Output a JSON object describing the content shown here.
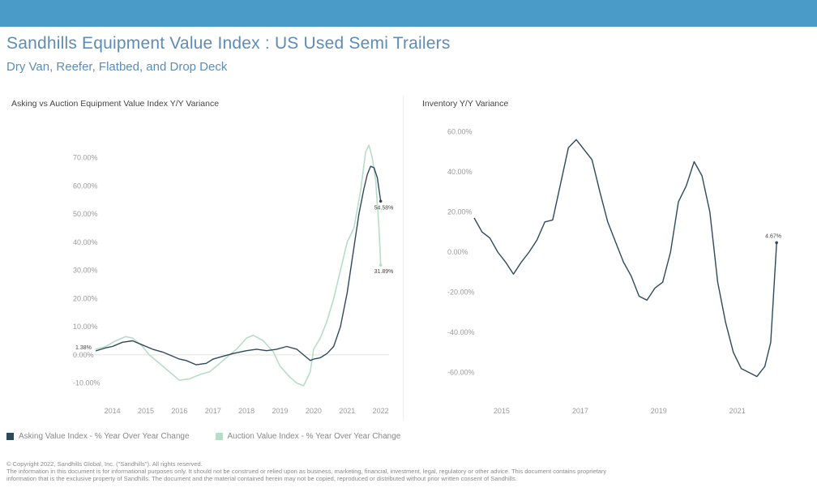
{
  "header": {
    "title": "Sandhills Equipment Value Index : US Used Semi Trailers",
    "subtitle": "Dry Van, Reefer, Flatbed, and Drop Deck"
  },
  "colors": {
    "topbar": "#4b9bc8",
    "title": "#5c8db8",
    "asking": "#2d4a5a",
    "auction": "#b8dcc8"
  },
  "legend": {
    "asking": "Asking Value Index - % Year Over Year Change",
    "auction": "Auction Value Index - % Year Over Year Change"
  },
  "footer": {
    "line1": "© Copyright 2022, Sandhills Global, Inc. (\"Sandhills\"). All rights reserved.",
    "line2": "The information in this document is for informational purposes only. It should not be construed or relied upon as business, marketing, financial, investment, legal, regulatory or other advice. This document contains proprietary",
    "line3": "information that is the exclusive property of Sandhills. The document and the material contained herein may not be copied, reproduced or distributed without prior written consent of Sandhills."
  },
  "chart_data": [
    {
      "type": "line",
      "title": "Asking vs Auction Equipment Value Index Y/Y Variance",
      "ylim": [
        -15,
        80
      ],
      "yticks": [
        "-10.00%",
        "0.00%",
        "10.00%",
        "20.00%",
        "30.00%",
        "40.00%",
        "50.00%",
        "60.00%",
        "70.00%"
      ],
      "ytick_values": [
        -10,
        0,
        10,
        20,
        30,
        40,
        50,
        60,
        70
      ],
      "xlim": [
        2013.5,
        2022.25
      ],
      "xticks": [
        "2014",
        "2015",
        "2016",
        "2017",
        "2018",
        "2019",
        "2020",
        "2021",
        "2022"
      ],
      "xtick_values": [
        2014,
        2015,
        2016,
        2017,
        2018,
        2019,
        2020,
        2021,
        2022
      ],
      "grid": false,
      "legend_position": "bottom-left",
      "data_labels": [
        {
          "series": "asking",
          "x": 2022.0,
          "y": 54.58,
          "text": "54.58%"
        },
        {
          "series": "auction",
          "x": 2022.0,
          "y": 31.89,
          "text": "31.89%"
        },
        {
          "series": "start",
          "x": 2013.5,
          "y": 1.38,
          "text": "1.38%"
        }
      ],
      "series": [
        {
          "name": "Asking Value Index - % Year Over Year Change",
          "color": "#2d4a5a",
          "x": [
            2013.5,
            2013.8,
            2014.0,
            2014.3,
            2014.6,
            2014.9,
            2015.2,
            2015.5,
            2015.8,
            2016.0,
            2016.2,
            2016.5,
            2016.8,
            2017.0,
            2017.3,
            2017.6,
            2017.8,
            2018.0,
            2018.3,
            2018.6,
            2018.9,
            2019.2,
            2019.5,
            2019.7,
            2019.9,
            2020.0,
            2020.2,
            2020.4,
            2020.6,
            2020.8,
            2021.0,
            2021.2,
            2021.35,
            2021.5,
            2021.6,
            2021.7,
            2021.8,
            2021.9,
            2022.0
          ],
          "y": [
            1.4,
            2.5,
            3.0,
            4.5,
            5.0,
            3.5,
            2.0,
            1.0,
            -0.5,
            -1.5,
            -2.0,
            -3.5,
            -3.0,
            -1.5,
            -0.5,
            0.5,
            1.0,
            1.5,
            2.0,
            1.5,
            2.0,
            3.0,
            2.0,
            0.0,
            -2.0,
            -1.5,
            -1.0,
            0.5,
            3.0,
            10.0,
            22.0,
            38.0,
            50.0,
            59.0,
            64.0,
            67.0,
            66.5,
            63.0,
            54.58
          ]
        },
        {
          "name": "Auction Value Index - % Year Over Year Change",
          "color": "#b8dcc8",
          "x": [
            2013.5,
            2013.8,
            2014.1,
            2014.4,
            2014.6,
            2014.9,
            2015.1,
            2015.4,
            2015.7,
            2016.0,
            2016.3,
            2016.6,
            2016.9,
            2017.1,
            2017.4,
            2017.7,
            2018.0,
            2018.2,
            2018.5,
            2018.8,
            2019.0,
            2019.3,
            2019.5,
            2019.7,
            2019.9,
            2020.0,
            2020.2,
            2020.4,
            2020.6,
            2020.8,
            2021.0,
            2021.2,
            2021.4,
            2021.55,
            2021.65,
            2021.75,
            2021.85,
            2021.95,
            2022.0
          ],
          "y": [
            2.0,
            3.0,
            5.0,
            6.5,
            6.0,
            3.0,
            0.0,
            -3.0,
            -6.0,
            -9.0,
            -8.5,
            -7.0,
            -6.0,
            -4.0,
            -1.0,
            2.0,
            6.0,
            7.0,
            5.0,
            1.0,
            -4.0,
            -8.0,
            -10.0,
            -11.0,
            -6.0,
            2.0,
            6.0,
            12.0,
            20.0,
            30.0,
            40.0,
            45.0,
            58.0,
            72.0,
            74.5,
            70.0,
            62.0,
            45.0,
            31.89
          ]
        }
      ]
    },
    {
      "type": "line",
      "title": "Inventory Y/Y Variance",
      "ylim": [
        -65,
        65
      ],
      "yticks": [
        "-60.00%",
        "-40.00%",
        "-20.00%",
        "0.00%",
        "20.00%",
        "40.00%",
        "60.00%"
      ],
      "ytick_values": [
        -60,
        -40,
        -20,
        0,
        20,
        40,
        60
      ],
      "xlim": [
        2014.3,
        2022.1
      ],
      "xticks": [
        "2015",
        "2017",
        "2019",
        "2021"
      ],
      "xtick_values": [
        2015,
        2017,
        2019,
        2021
      ],
      "grid": false,
      "data_labels": [
        {
          "series": "inventory",
          "x": 2022.0,
          "y": 4.67,
          "text": "4.67%"
        }
      ],
      "series": [
        {
          "name": "",
          "color": "#2d4a5a",
          "x": [
            2014.3,
            2014.5,
            2014.7,
            2014.9,
            2015.1,
            2015.3,
            2015.5,
            2015.7,
            2015.9,
            2016.1,
            2016.3,
            2016.5,
            2016.7,
            2016.9,
            2017.1,
            2017.3,
            2017.5,
            2017.7,
            2017.9,
            2018.1,
            2018.3,
            2018.5,
            2018.7,
            2018.9,
            2019.1,
            2019.3,
            2019.5,
            2019.7,
            2019.9,
            2020.1,
            2020.3,
            2020.5,
            2020.7,
            2020.9,
            2021.1,
            2021.3,
            2021.5,
            2021.7,
            2021.85,
            2022.0
          ],
          "y": [
            17,
            10,
            7,
            0,
            -5,
            -11,
            -5,
            0,
            6,
            15,
            16,
            34,
            52,
            56,
            51,
            46,
            30,
            15,
            5,
            -5,
            -12,
            -22,
            -24,
            -18,
            -15,
            0,
            25,
            33,
            45,
            38,
            20,
            -15,
            -35,
            -50,
            -58,
            -60,
            -62,
            -57,
            -45,
            4.67
          ]
        }
      ]
    }
  ]
}
